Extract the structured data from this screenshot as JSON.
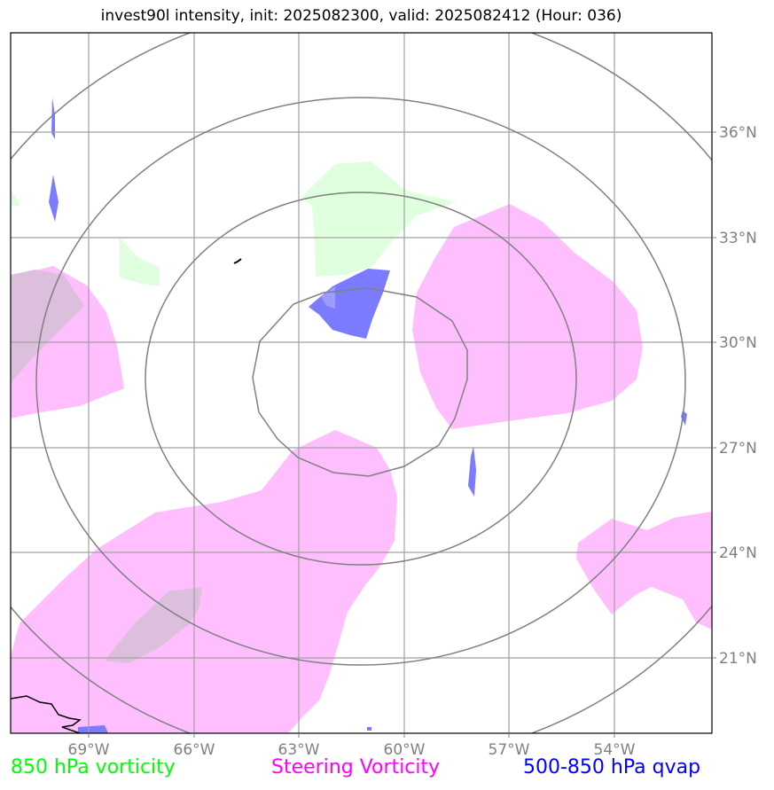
{
  "title": "invest90l intensity, init: 2025082300, valid: 2025082412 (Hour: 036)",
  "map": {
    "lon_ticks": [
      "69°W",
      "66°W",
      "63°W",
      "60°W",
      "57°W",
      "54°W"
    ],
    "lat_ticks": [
      "36°N",
      "33°N",
      "30°N",
      "27°N",
      "24°N",
      "21°N"
    ],
    "lon_range": [
      "71°W",
      "51°W"
    ],
    "lat_range": [
      "19°N",
      "39°N"
    ]
  },
  "legend": {
    "vorticity_850": {
      "label": "850 hPa vorticity",
      "color": "#00ff00"
    },
    "steering_vorticity": {
      "label": "Steering Vorticity",
      "color": "#ff00ff"
    },
    "qvap": {
      "label": "500-850 hPa qvap",
      "color": "#0000ff"
    }
  },
  "colors": {
    "steering_fill": "#ffbfff",
    "vort850_fill": "#dfffdf",
    "qvap_fill": "#7b7bff",
    "overlap_fill": "#dcbfdc",
    "grid": "#a0a0a0",
    "rings": "#808080"
  }
}
